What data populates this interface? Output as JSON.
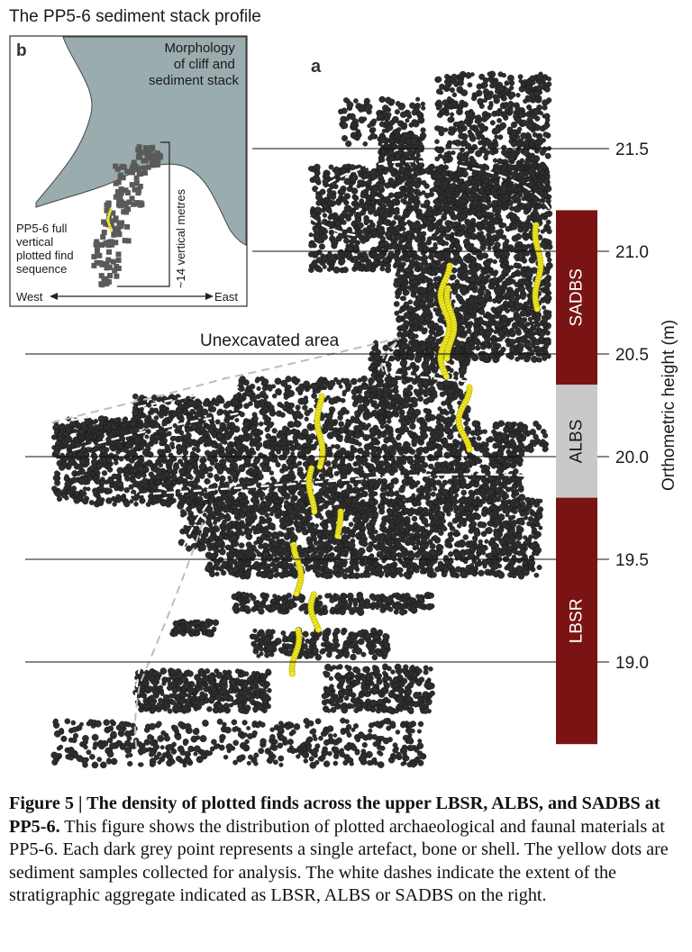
{
  "figure": {
    "title": "The PP5-6 sediment stack profile",
    "panel_a_label": "a",
    "unexcavated_label": "Unexcavated area",
    "axis_label": "Orthometric height (m)",
    "ticks": [
      "21.5",
      "21.0",
      "20.5",
      "20.0",
      "19.5",
      "19.0"
    ],
    "strata": [
      {
        "name": "SADBS",
        "top": 21.2,
        "bottom": 20.35,
        "color": "#7a1414"
      },
      {
        "name": "ALBS",
        "top": 20.35,
        "bottom": 19.8,
        "color": "#c9c9c9"
      },
      {
        "name": "LBSR",
        "top": 19.8,
        "bottom": 18.6,
        "color": "#7a1414"
      }
    ],
    "inset": {
      "panel_label": "b",
      "morphology_label": [
        "Morphology",
        "of cliff and",
        "sediment stack"
      ],
      "sequence_label": [
        "PP5-6 full",
        "vertical",
        "plotted find",
        "sequence"
      ],
      "vertical_label": "~14 vertical metres",
      "west_label": "West",
      "east_label": "East"
    }
  },
  "caption": {
    "bold": "Figure 5 | The density of plotted finds across the upper LBSR, ALBS, and SADBS at PP5-6.",
    "text": " This figure shows the distribution of plotted archaeological and faunal materials at PP5-6. Each dark grey point represents a single artefact, bone or shell. The yellow dots are sediment samples collected for analysis. The white dashes indicate the extent of the stratigraphic aggregate indicated as LBSR, ALBS or SADBS on the right."
  }
}
